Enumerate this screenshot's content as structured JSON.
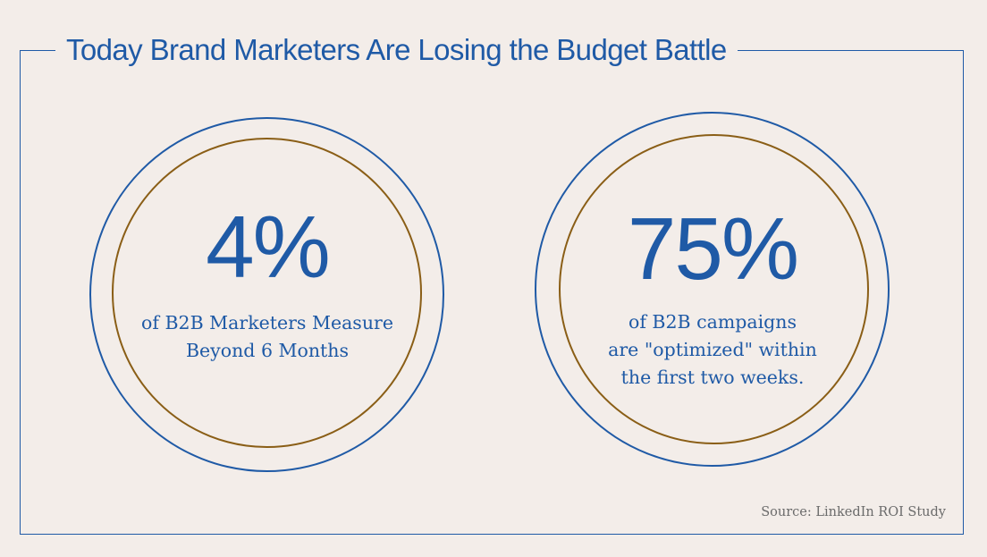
{
  "header": {
    "title": "Today Brand Marketers Are Losing the Budget Battle"
  },
  "stats": [
    {
      "figure": "4%",
      "caption_lines": [
        "of B2B Marketers Measure",
        "Beyond 6 Months"
      ]
    },
    {
      "figure": "75%",
      "caption_lines": [
        "of B2B campaigns",
        "are \"optimized\" within",
        "the first two weeks."
      ]
    }
  ],
  "footer": {
    "source": "Source: LinkedIn ROI Study"
  },
  "colors": {
    "background": "#f3ede9",
    "accent_blue": "#1f5aa6",
    "accent_bronze": "#8a5e16",
    "source_text": "#6b6b6b"
  }
}
